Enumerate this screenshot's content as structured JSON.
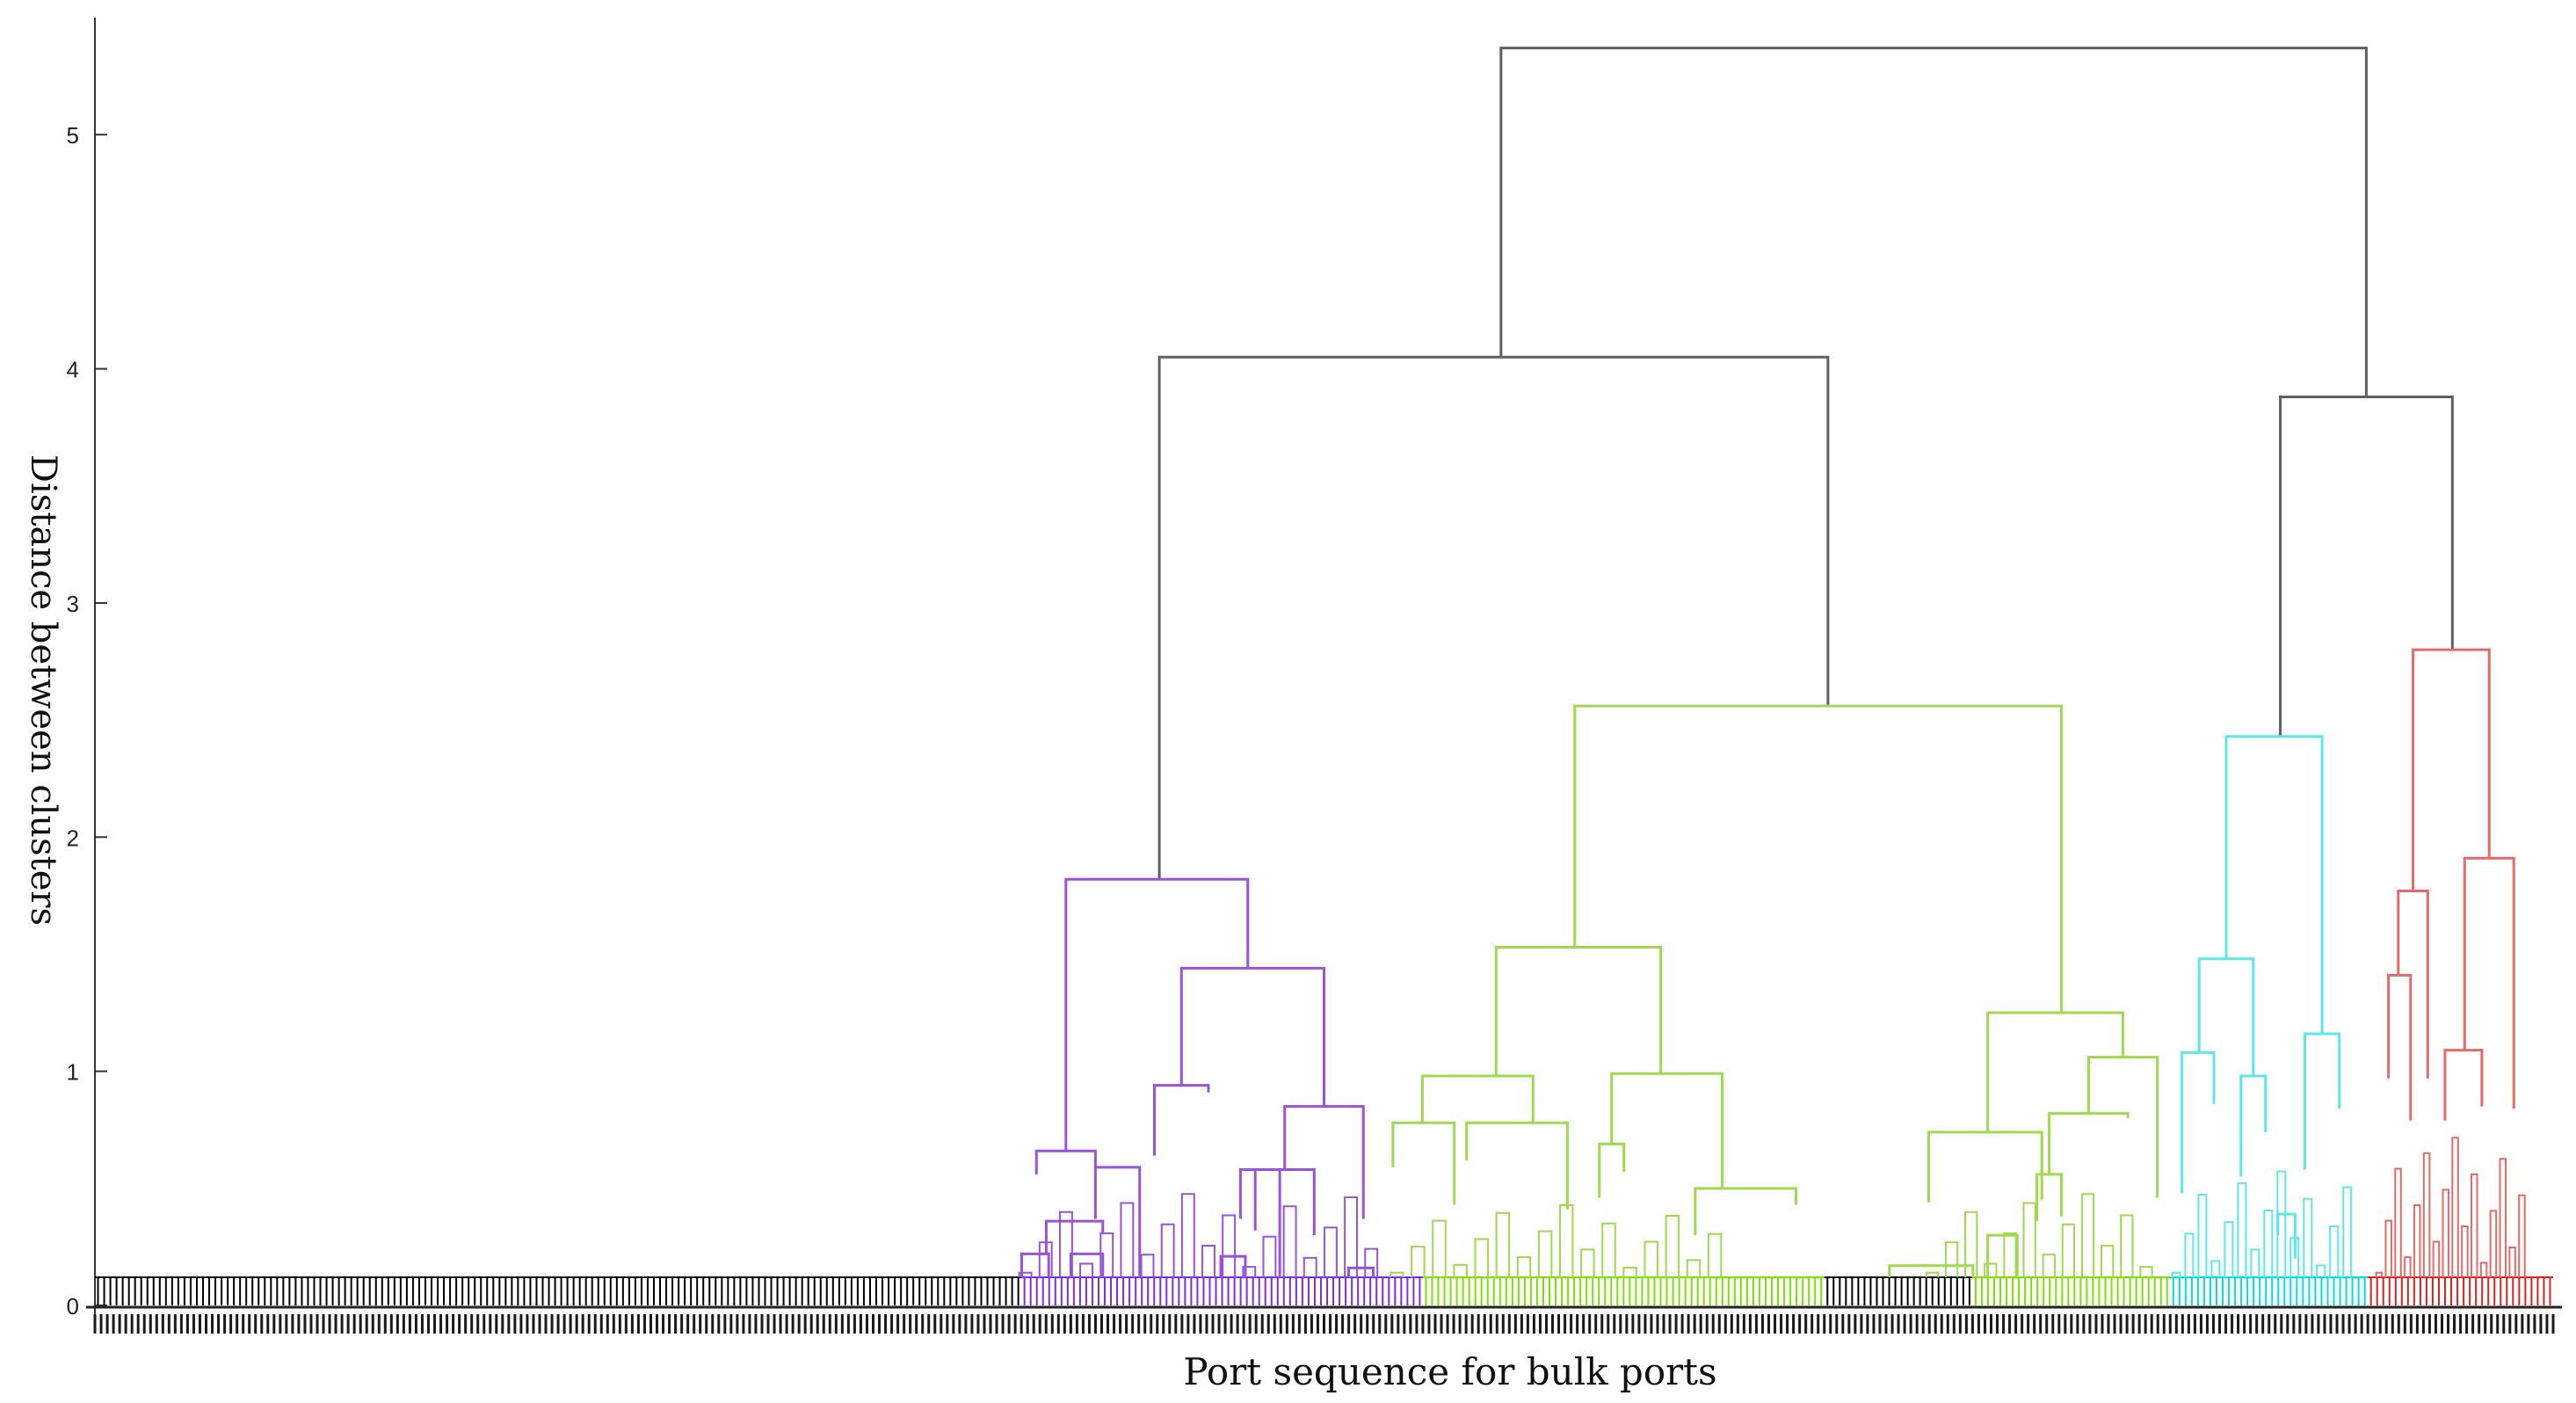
{
  "chart_data": {
    "type": "dendrogram",
    "title": "",
    "xlabel": "Port sequence for bulk ports",
    "ylabel": "Distance between clusters",
    "ylim": [
      0,
      5.5
    ],
    "yticks": [
      0,
      1,
      2,
      3,
      4,
      5
    ],
    "grid": false,
    "legend": "none",
    "leaf_baseline_height": 0.08,
    "leaf_groups": [
      {
        "name": "black-left",
        "count": 150,
        "color": "#000000"
      },
      {
        "name": "purple",
        "count": 65,
        "color": "#7a2ee0"
      },
      {
        "name": "green-a",
        "count": 65,
        "color": "#7fe000"
      },
      {
        "name": "black-mid",
        "count": 24,
        "color": "#000000"
      },
      {
        "name": "green-b",
        "count": 32,
        "color": "#7fe000"
      },
      {
        "name": "cyan",
        "count": 32,
        "color": "#00dede"
      },
      {
        "name": "red",
        "count": 30,
        "color": "#e02020"
      }
    ],
    "merges": [
      {
        "color": "#606060",
        "x_left": 0.572,
        "x_right": 0.924,
        "y_left": 4.05,
        "y_right": 3.88,
        "height": 5.37
      },
      {
        "color": "#606060",
        "x_left": 0.433,
        "x_right": 0.705,
        "y_left": 1.82,
        "y_right": 2.56,
        "height": 4.05
      },
      {
        "color": "#606060",
        "x_left": 0.889,
        "x_right": 0.959,
        "y_left": 2.43,
        "y_right": 2.8,
        "height": 3.88
      },
      {
        "color": "#9a52d8",
        "x_left": 0.395,
        "x_right": 0.469,
        "y_left": 0.66,
        "y_right": 1.44,
        "height": 1.82
      },
      {
        "color": "#9a52d8",
        "x_left": 0.442,
        "x_right": 0.5,
        "y_left": 0.94,
        "y_right": 0.85,
        "height": 1.44
      },
      {
        "color": "#9a52d8",
        "x_left": 0.383,
        "x_right": 0.407,
        "y_left": 0.56,
        "y_right": 0.59,
        "height": 0.66
      },
      {
        "color": "#9a52d8",
        "x_left": 0.484,
        "x_right": 0.516,
        "y_left": 0.58,
        "y_right": 0.37,
        "height": 0.85
      },
      {
        "color": "#9a52d8",
        "x_left": 0.431,
        "x_right": 0.453,
        "y_left": 0.64,
        "y_right": 0.91,
        "height": 0.94
      },
      {
        "color": "#9a52d8",
        "x_left": 0.472,
        "x_right": 0.496,
        "y_left": 0.32,
        "y_right": 0.3,
        "height": 0.58
      },
      {
        "color": "#9a52d8",
        "x_left": 0.466,
        "x_right": 0.482,
        "y_left": 0.37,
        "y_right": 0.12,
        "height": 0.58
      },
      {
        "color": "#9a52d8",
        "x_left": 0.407,
        "x_right": 0.425,
        "y_left": 0.37,
        "y_right": 0.12,
        "height": 0.59
      },
      {
        "color": "#9a52d8",
        "x_left": 0.387,
        "x_right": 0.41,
        "y_left": 0.22,
        "y_right": 0.31,
        "height": 0.36
      },
      {
        "color": "#9a52d8",
        "x_left": 0.377,
        "x_right": 0.388,
        "y_left": 0.12,
        "y_right": 0.12,
        "height": 0.22
      },
      {
        "color": "#9a52d8",
        "x_left": 0.397,
        "x_right": 0.41,
        "y_left": 0.12,
        "y_right": 0.12,
        "height": 0.22
      },
      {
        "color": "#9a52d8",
        "x_left": 0.458,
        "x_right": 0.468,
        "y_left": 0.12,
        "y_right": 0.12,
        "height": 0.21
      },
      {
        "color": "#9a52d8",
        "x_left": 0.51,
        "x_right": 0.52,
        "y_left": 0.12,
        "y_right": 0.12,
        "height": 0.16
      },
      {
        "color": "#9ed94f",
        "x_left": 0.602,
        "x_right": 0.8,
        "y_left": 1.53,
        "y_right": 1.25,
        "height": 2.56
      },
      {
        "color": "#9ed94f",
        "x_left": 0.57,
        "x_right": 0.637,
        "y_left": 0.98,
        "y_right": 0.99,
        "height": 1.53
      },
      {
        "color": "#9ed94f",
        "x_left": 0.54,
        "x_right": 0.585,
        "y_left": 0.78,
        "y_right": 0.78,
        "height": 0.98
      },
      {
        "color": "#9ed94f",
        "x_left": 0.617,
        "x_right": 0.662,
        "y_left": 0.69,
        "y_right": 0.5,
        "height": 0.99
      },
      {
        "color": "#9ed94f",
        "x_left": 0.528,
        "x_right": 0.553,
        "y_left": 0.59,
        "y_right": 0.43,
        "height": 0.78
      },
      {
        "color": "#9ed94f",
        "x_left": 0.558,
        "x_right": 0.599,
        "y_left": 0.62,
        "y_right": 0.41,
        "height": 0.78
      },
      {
        "color": "#9ed94f",
        "x_left": 0.612,
        "x_right": 0.622,
        "y_left": 0.46,
        "y_right": 0.57,
        "height": 0.69
      },
      {
        "color": "#9ed94f",
        "x_left": 0.651,
        "x_right": 0.692,
        "y_left": 0.3,
        "y_right": 0.43,
        "height": 0.5
      },
      {
        "color": "#9ed94f",
        "x_left": 0.77,
        "x_right": 0.825,
        "y_left": 0.74,
        "y_right": 1.06,
        "height": 1.25
      },
      {
        "color": "#9ed94f",
        "x_left": 0.746,
        "x_right": 0.792,
        "y_left": 0.44,
        "y_right": 0.45,
        "height": 0.74
      },
      {
        "color": "#9ed94f",
        "x_left": 0.811,
        "x_right": 0.839,
        "y_left": 0.82,
        "y_right": 0.46,
        "height": 1.06
      },
      {
        "color": "#9ed94f",
        "x_left": 0.795,
        "x_right": 0.827,
        "y_left": 0.56,
        "y_right": 0.8,
        "height": 0.82
      },
      {
        "color": "#9ed94f",
        "x_left": 0.79,
        "x_right": 0.8,
        "y_left": 0.36,
        "y_right": 0.38,
        "height": 0.56
      },
      {
        "color": "#9ed94f",
        "x_left": 0.73,
        "x_right": 0.764,
        "y_left": 0.12,
        "y_right": 0.12,
        "height": 0.17
      },
      {
        "color": "#9ed94f",
        "x_left": 0.77,
        "x_right": 0.782,
        "y_left": 0.12,
        "y_right": 0.12,
        "height": 0.3
      },
      {
        "color": "#5ce8e8",
        "x_left": 0.867,
        "x_right": 0.906,
        "y_left": 1.48,
        "y_right": 1.16,
        "height": 2.43
      },
      {
        "color": "#5ce8e8",
        "x_left": 0.856,
        "x_right": 0.878,
        "y_left": 1.08,
        "y_right": 0.98,
        "height": 1.48
      },
      {
        "color": "#5ce8e8",
        "x_left": 0.899,
        "x_right": 0.913,
        "y_left": 0.58,
        "y_right": 0.84,
        "height": 1.16
      },
      {
        "color": "#5ce8e8",
        "x_left": 0.849,
        "x_right": 0.862,
        "y_left": 0.48,
        "y_right": 0.86,
        "height": 1.08
      },
      {
        "color": "#5ce8e8",
        "x_left": 0.873,
        "x_right": 0.883,
        "y_left": 0.55,
        "y_right": 0.74,
        "height": 0.98
      },
      {
        "color": "#5ce8e8",
        "x_left": 0.888,
        "x_right": 0.895,
        "y_left": 0.3,
        "y_right": 0.2,
        "height": 0.39
      },
      {
        "color": "#e46a6a",
        "x_left": 0.943,
        "x_right": 0.974,
        "y_left": 1.77,
        "y_right": 1.91,
        "height": 2.8
      },
      {
        "color": "#e46a6a",
        "x_left": 0.937,
        "x_right": 0.949,
        "y_left": 1.41,
        "y_right": 0.97,
        "height": 1.77
      },
      {
        "color": "#e46a6a",
        "x_left": 0.964,
        "x_right": 0.984,
        "y_left": 1.09,
        "y_right": 0.84,
        "height": 1.91
      },
      {
        "color": "#e46a6a",
        "x_left": 0.933,
        "x_right": 0.942,
        "y_left": 0.97,
        "y_right": 0.79,
        "height": 1.41
      },
      {
        "color": "#e46a6a",
        "x_left": 0.956,
        "x_right": 0.971,
        "y_left": 0.79,
        "y_right": 0.85,
        "height": 1.09
      }
    ]
  }
}
